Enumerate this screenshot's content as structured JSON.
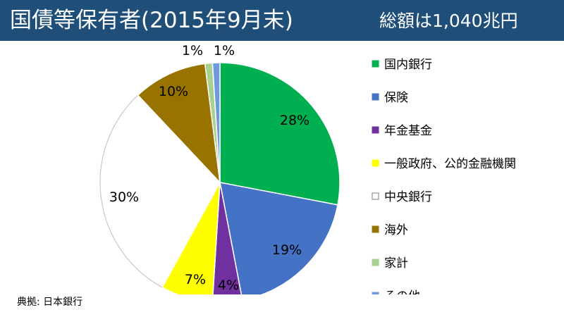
{
  "title": "国債等保有者(2015年9月末)",
  "subtitle": "総額は1,040兆円",
  "source": "典拠: 日本銀行",
  "chart_data": {
    "type": "pie",
    "title": "国債等保有者(2015年9月末)",
    "subtitle": "総額は1,040兆円",
    "start_angle_deg": 0,
    "direction": "clockwise",
    "legend_position": "right",
    "slices": [
      {
        "label": "国内銀行",
        "value": 28,
        "display": "28%",
        "color": "#00b050"
      },
      {
        "label": "保険",
        "value": 19,
        "display": "19%",
        "color": "#4472c4"
      },
      {
        "label": "年金基金",
        "value": 4,
        "display": "4%",
        "color": "#7030a0"
      },
      {
        "label": "一般政府、公的金融機関",
        "value": 7,
        "display": "7%",
        "color": "#ffff00"
      },
      {
        "label": "中央銀行",
        "value": 30,
        "display": "30%",
        "color": "#ffffff"
      },
      {
        "label": "海外",
        "value": 10,
        "display": "10%",
        "color": "#997300"
      },
      {
        "label": "家計",
        "value": 1,
        "display": "1%",
        "color": "#a9d18e"
      },
      {
        "label": "その他",
        "value": 1,
        "display": "1%",
        "color": "#6f9ae0"
      }
    ]
  }
}
